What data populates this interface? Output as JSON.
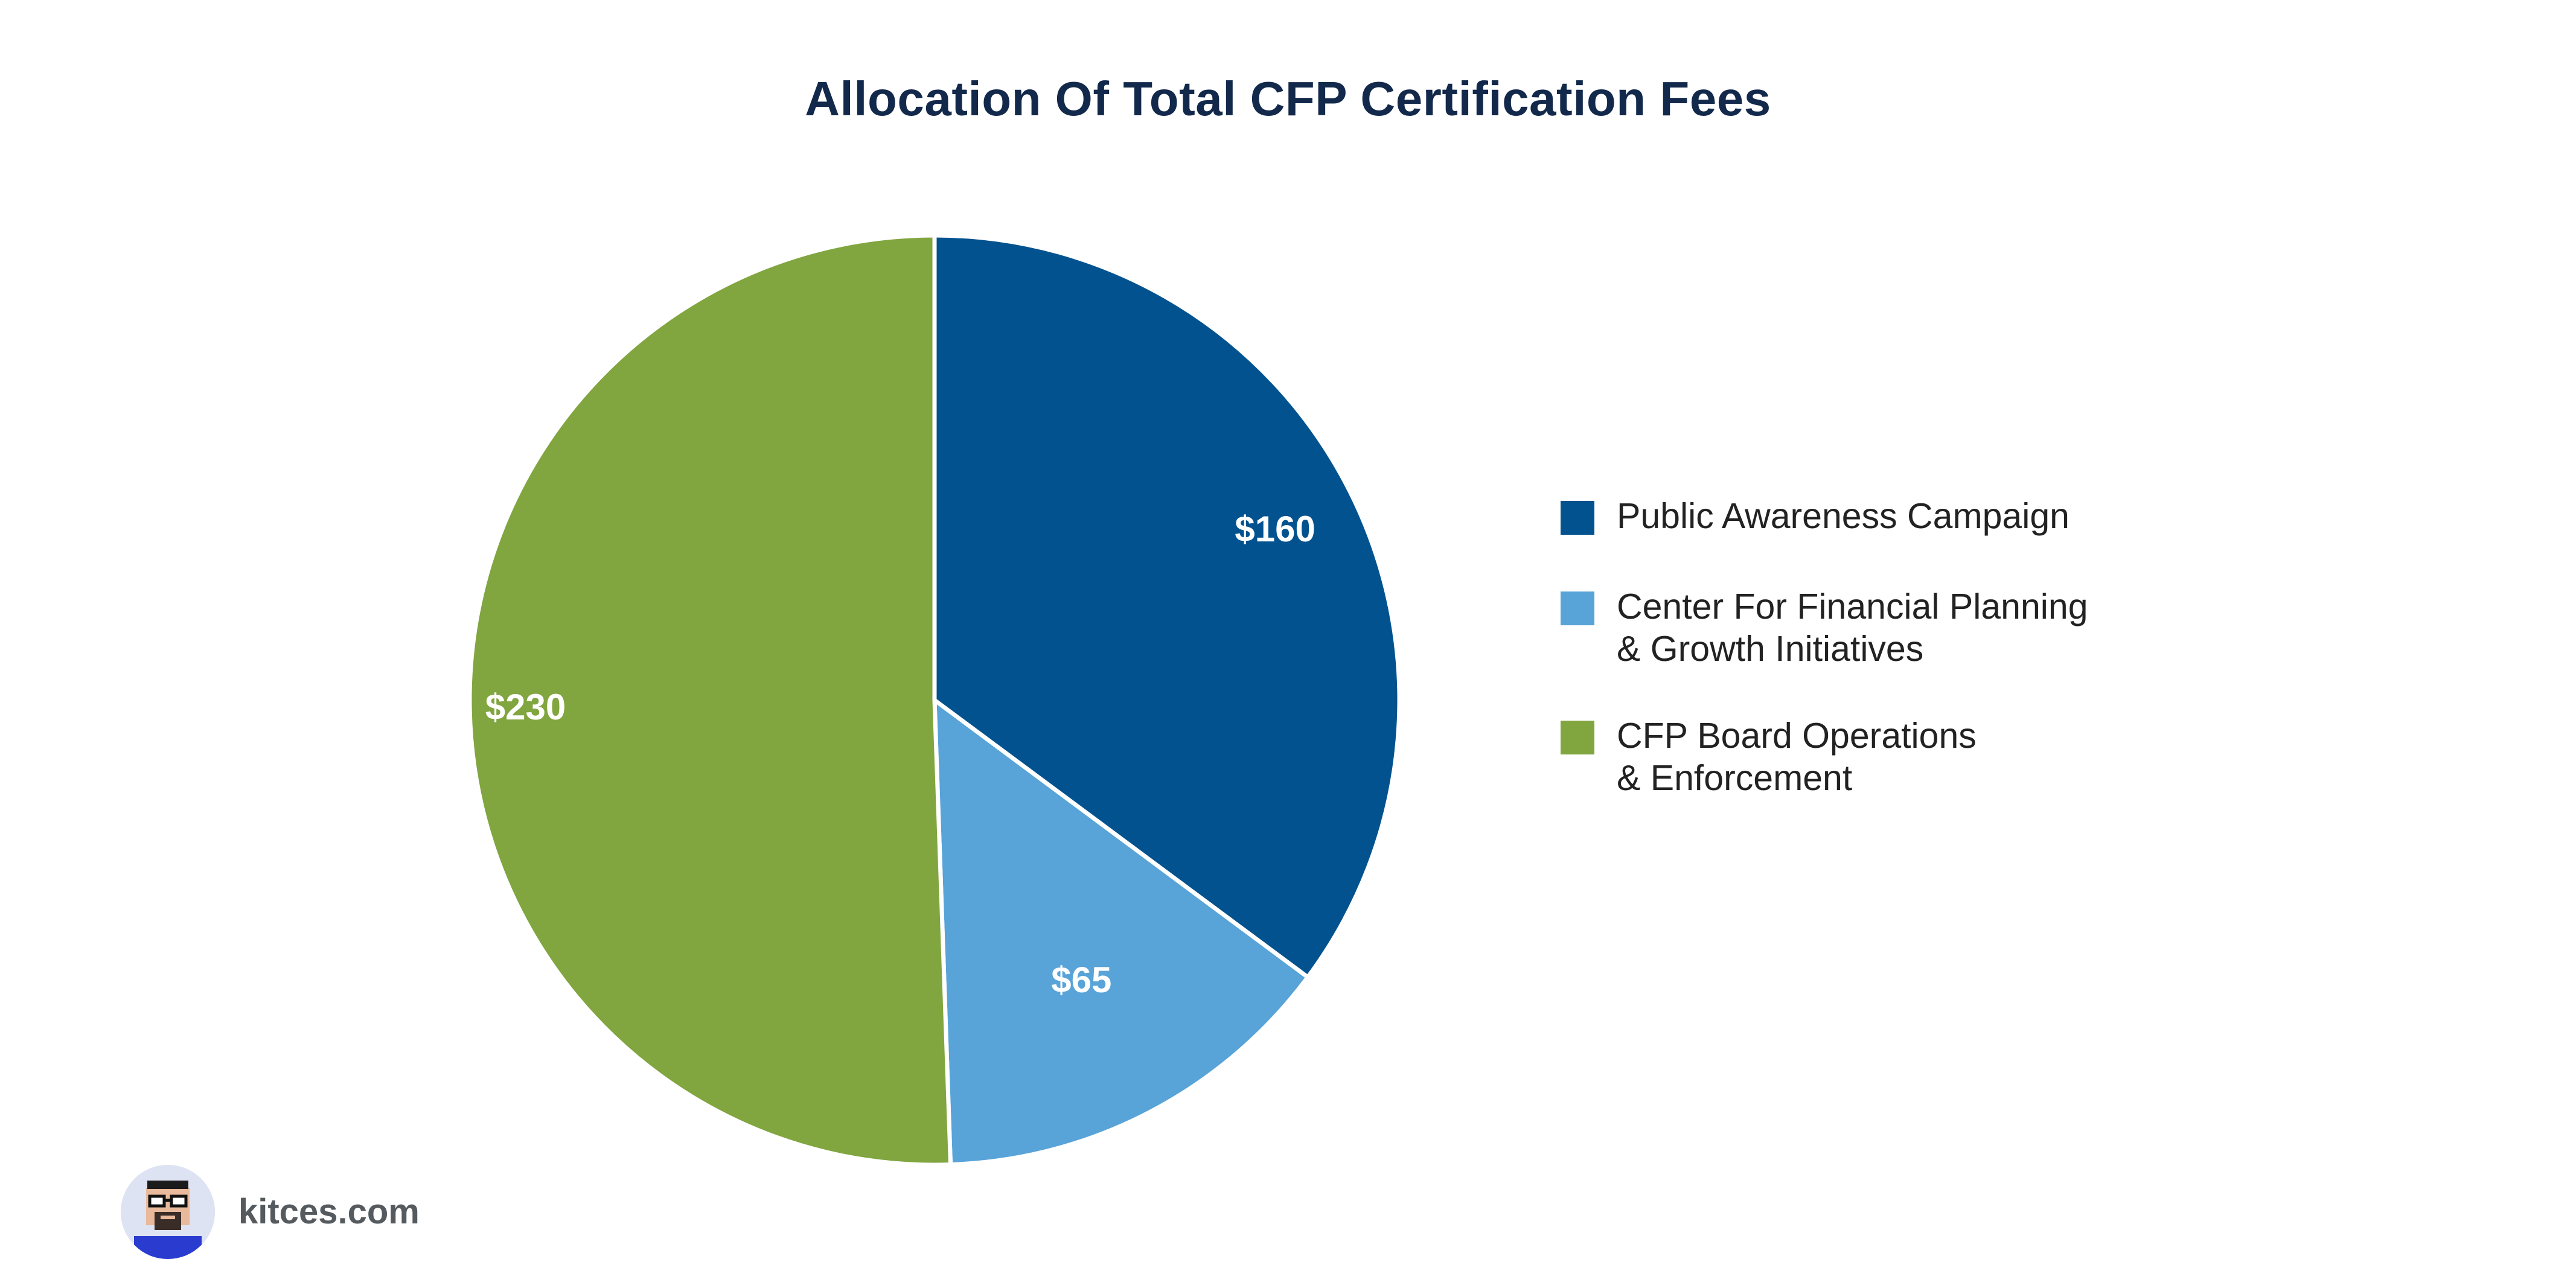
{
  "chart_data": {
    "type": "pie",
    "title": "Allocation Of Total CFP Certification Fees",
    "slices": [
      {
        "label": "Public Awareness Campaign",
        "value": 160,
        "value_label": "$160",
        "color": "#01528f"
      },
      {
        "label": "Center For Financial Planning\n& Growth Initiatives",
        "value": 65,
        "value_label": "$65",
        "color": "#58a3d8"
      },
      {
        "label": "CFP Board Operations\n& Enforcement",
        "value": 230,
        "value_label": "$230",
        "color": "#81a53f"
      }
    ],
    "start_angle": "12 o'clock",
    "direction": "clockwise",
    "legend_position": "right"
  },
  "branding": {
    "site": "kitces.com",
    "avatar_icon": "cartoon-avatar-icon"
  }
}
